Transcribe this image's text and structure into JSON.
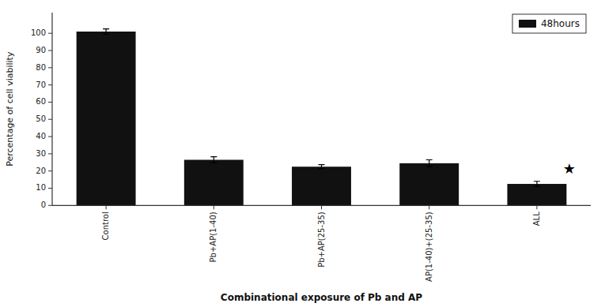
{
  "chart_data": {
    "type": "bar",
    "categories": [
      "Control",
      "Pb+AP(1-40)",
      "Pb+AP(25-35)",
      "AP(1-40)+(25-35)",
      "ALL"
    ],
    "series": [
      {
        "name": "48hours",
        "color": "#111111",
        "values": [
          101.0,
          26.5,
          22.5,
          24.5,
          12.5
        ],
        "errors": [
          1.5,
          1.8,
          1.2,
          2.0,
          1.5
        ]
      }
    ],
    "xlabel": "Combinational exposure of Pb and AP",
    "ylabel": "Percentage of cell viability",
    "ylim": [
      0,
      112
    ],
    "yticks": [
      0,
      10,
      20,
      30,
      40,
      50,
      60,
      70,
      80,
      90,
      100
    ],
    "annotations": [
      {
        "text": "★",
        "category": "ALL"
      }
    ],
    "legend": "upper right",
    "grid": false
  }
}
